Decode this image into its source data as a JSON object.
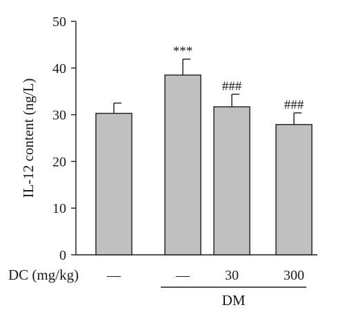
{
  "chart_data": {
    "type": "bar",
    "ylabel": "IL-12 content (ng/L)",
    "ylim": [
      0,
      50
    ],
    "yticks": [
      0,
      10,
      20,
      30,
      40,
      50
    ],
    "categories": [
      "—",
      "—",
      "30",
      "300"
    ],
    "values": [
      30.3,
      38.5,
      31.7,
      27.9
    ],
    "errors": [
      2.2,
      3.4,
      2.7,
      2.5
    ],
    "annotations": [
      "",
      "***",
      "###",
      "###"
    ],
    "x_row_label": "DC (mg/kg)",
    "group_label": "DM",
    "group_span": [
      1,
      3
    ],
    "colors": {
      "bar": "#c0c0c0",
      "outline": "#1a1a1a"
    },
    "grid": false
  }
}
